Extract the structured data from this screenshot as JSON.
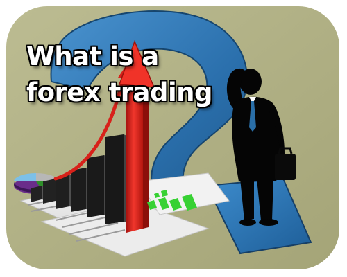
{
  "headline": {
    "line1": "What is a",
    "line2": "forex trading"
  },
  "colors": {
    "background_panel": "#b0b083",
    "question_mark": "#2e78b4",
    "arrow": "#e8241c",
    "bars": "#2a2a2a",
    "green_bars": "#39d435",
    "silhouette": "#050505"
  },
  "icons": {
    "question_mark": "question-mark-graphic",
    "businessman": "worried-businessman-silhouette",
    "briefcase": "briefcase-icon",
    "chart": "bar-chart-with-rising-arrow",
    "pie": "pie-chart-icon"
  }
}
